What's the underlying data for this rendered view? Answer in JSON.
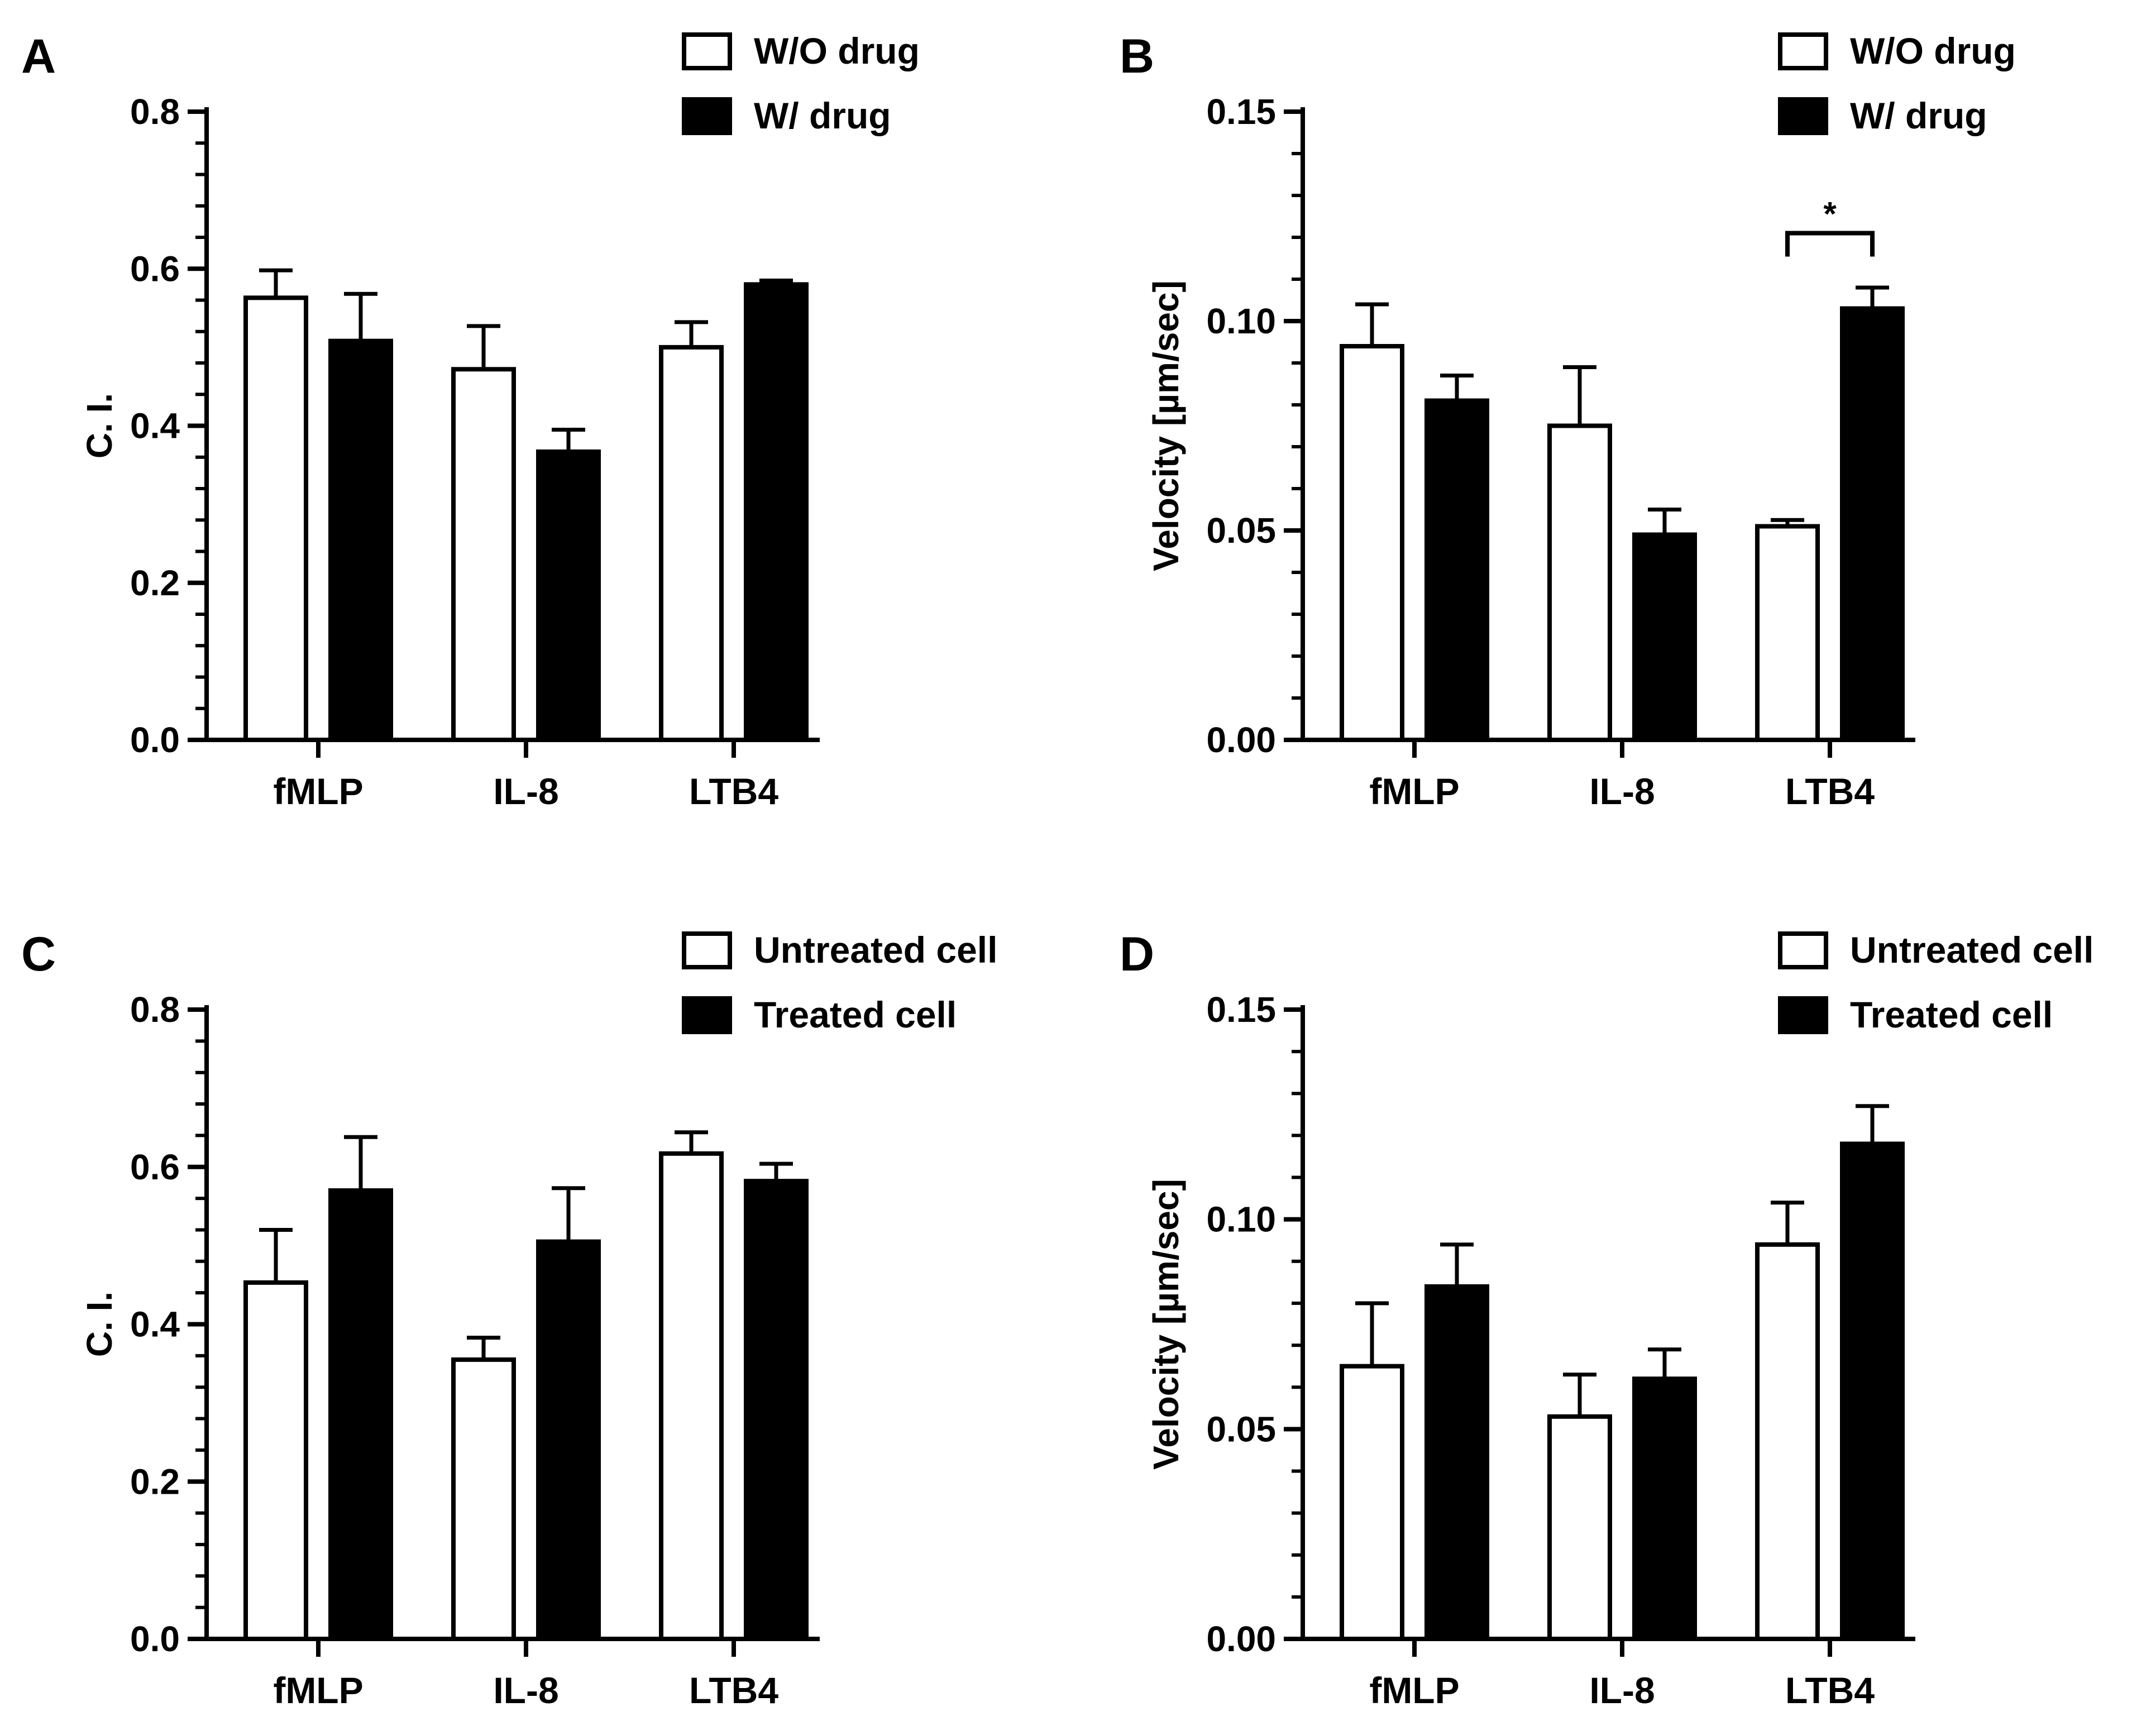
{
  "chart_data": [
    {
      "panel": "A",
      "type": "bar",
      "categories": [
        "fMLP",
        "IL-8",
        "LTB4"
      ],
      "series": [
        {
          "name": "W/O drug",
          "values": [
            0.563,
            0.472,
            0.5
          ],
          "errors": [
            0.035,
            0.055,
            0.032
          ],
          "fill": "#ffffff"
        },
        {
          "name": "W/ drug",
          "values": [
            0.508,
            0.367,
            0.58
          ],
          "errors": [
            0.06,
            0.028,
            0.005
          ],
          "fill": "#000000"
        }
      ],
      "ylabel": "C. I.",
      "ylim": [
        0,
        0.8
      ],
      "yticks": [
        "0.0",
        "0.2",
        "0.4",
        "0.6",
        "0.8"
      ],
      "legend": "top-right",
      "significance": []
    },
    {
      "panel": "B",
      "type": "bar",
      "categories": [
        "fMLP",
        "IL-8",
        "LTB4"
      ],
      "series": [
        {
          "name": "W/O drug",
          "values": [
            0.094,
            0.075,
            0.051
          ],
          "errors": [
            0.01,
            0.014,
            0.0015
          ],
          "fill": "#ffffff"
        },
        {
          "name": "W/ drug",
          "values": [
            0.081,
            0.049,
            0.103
          ],
          "errors": [
            0.006,
            0.006,
            0.005
          ],
          "fill": "#000000"
        }
      ],
      "ylabel": "Velocity [µm/sec]",
      "ylim": [
        0,
        0.15
      ],
      "yticks": [
        "0.00",
        "0.05",
        "0.10",
        "0.15"
      ],
      "legend": "top-right",
      "significance": [
        {
          "category": "LTB4",
          "label": "*",
          "y": 0.121
        }
      ]
    },
    {
      "panel": "C",
      "type": "bar",
      "categories": [
        "fMLP",
        "IL-8",
        "LTB4"
      ],
      "series": [
        {
          "name": "Untreated cell",
          "values": [
            0.453,
            0.355,
            0.617
          ],
          "errors": [
            0.067,
            0.028,
            0.027
          ],
          "fill": "#ffffff"
        },
        {
          "name": "Treated cell",
          "values": [
            0.57,
            0.505,
            0.582
          ],
          "errors": [
            0.068,
            0.068,
            0.022
          ],
          "fill": "#000000"
        }
      ],
      "ylabel": "C. I.",
      "ylim": [
        0,
        0.8
      ],
      "yticks": [
        "0.0",
        "0.2",
        "0.4",
        "0.6",
        "0.8"
      ],
      "legend": "top-right",
      "significance": []
    },
    {
      "panel": "D",
      "type": "bar",
      "categories": [
        "fMLP",
        "IL-8",
        "LTB4"
      ],
      "series": [
        {
          "name": "Untreated cell",
          "values": [
            0.065,
            0.053,
            0.094
          ],
          "errors": [
            0.015,
            0.01,
            0.01
          ],
          "fill": "#ffffff"
        },
        {
          "name": "Treated cell",
          "values": [
            0.084,
            0.062,
            0.118
          ],
          "errors": [
            0.01,
            0.007,
            0.009
          ],
          "fill": "#000000"
        }
      ],
      "ylabel": "Velocity [µm/sec]",
      "ylim": [
        0,
        0.15
      ],
      "yticks": [
        "0.00",
        "0.05",
        "0.10",
        "0.15"
      ],
      "legend": "top-right",
      "significance": []
    }
  ]
}
